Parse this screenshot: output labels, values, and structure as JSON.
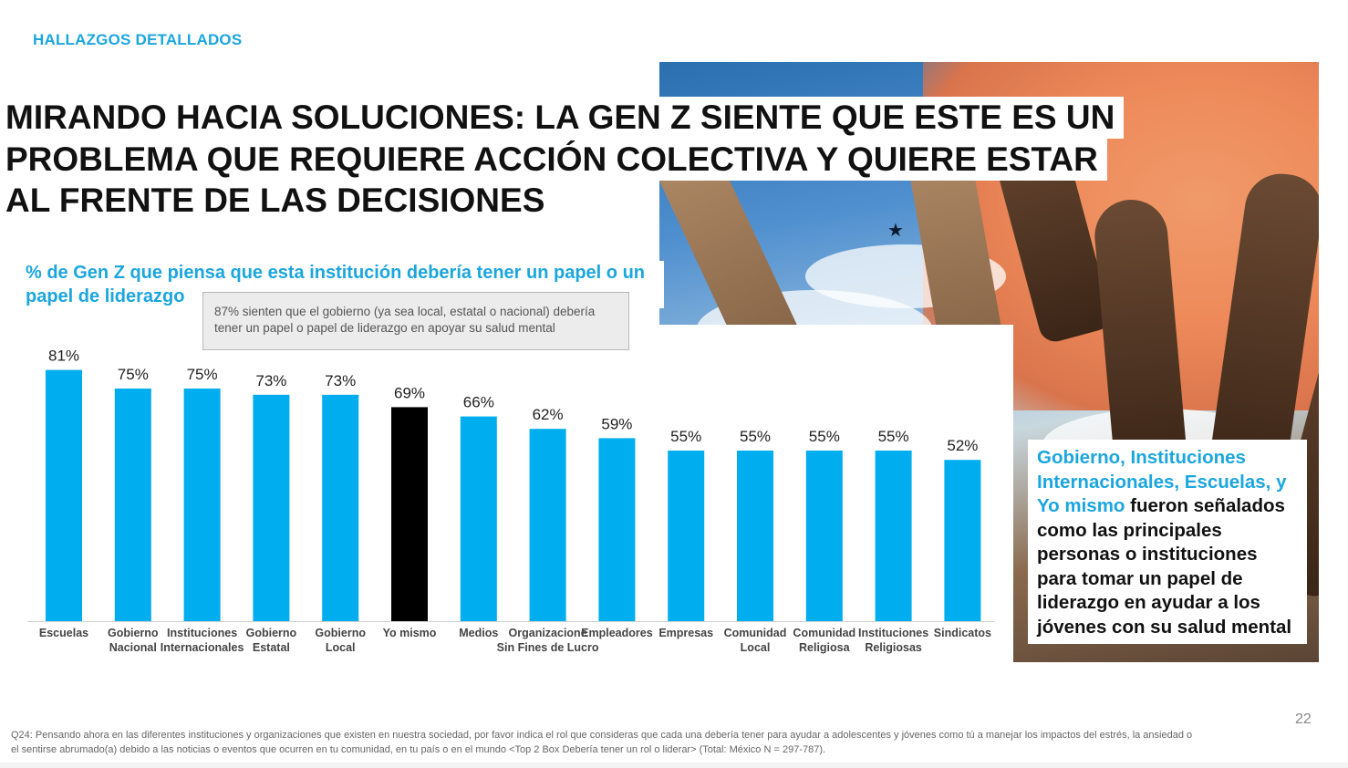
{
  "section_label": "HALLAZGOS DETALLADOS",
  "title_lines": [
    "MIRANDO HACIA SOLUCIONES: LA GEN Z SIENTE QUE ESTE ES UN",
    "PROBLEMA QUE REQUIERE ACCIÓN COLECTIVA Y QUIERE ESTAR",
    "AL FRENTE DE LAS DECISIONES"
  ],
  "subtitle": "% de Gen Z que piensa que esta institución debería tener un papel o un papel de liderazgo",
  "callout": "87% sienten que el gobierno (ya sea local, estatal o nacional) debería tener un papel o papel de liderazgo en apoyar su salud mental",
  "side_box": {
    "highlight": "Gobierno, Instituciones Internacionales, Escuelas, y Yo mismo",
    "rest": " fueron señalados como las principales personas o instituciones para tomar un papel de liderazgo en ayudar a los jóvenes con su salud mental"
  },
  "page_number": "22",
  "footnote": "Q24: Pensando ahora en las diferentes instituciones y organizaciones que existen en nuestra sociedad, por favor indica el rol que consideras que cada una debería tener para ayudar a adolescentes y jóvenes como tú a manejar los impactos del estrés, la ansiedad o el sentirse abrumado(a) debido a las noticias o eventos que ocurren en tu comunidad, en tu país o en el mundo <Top 2 Box Debería tener un rol o liderar> (Total: México N = 297-787).",
  "colors": {
    "accent": "#1ba6de",
    "bar": "#00adee",
    "highlight_bar": "#000000"
  },
  "chart_data": {
    "type": "bar",
    "categories": [
      [
        "Escuelas"
      ],
      [
        "Gobierno",
        "Nacional"
      ],
      [
        "Instituciones",
        "Internacionales"
      ],
      [
        "Gobierno",
        "Estatal"
      ],
      [
        "Gobierno",
        "Local"
      ],
      [
        "Yo mismo"
      ],
      [
        "Medios"
      ],
      [
        "Organizacione",
        "Sin Fines de Lucro"
      ],
      [
        "Empleadores"
      ],
      [
        "Empresas"
      ],
      [
        "Comunidad",
        "Local"
      ],
      [
        "Comunidad",
        "Religiosa"
      ],
      [
        "Instituciones",
        "Religiosas"
      ],
      [
        "Sindicatos"
      ]
    ],
    "values": [
      81,
      75,
      75,
      73,
      73,
      69,
      66,
      62,
      59,
      55,
      55,
      55,
      55,
      52
    ],
    "data_labels": [
      "81%",
      "75%",
      "75%",
      "73%",
      "73%",
      "69%",
      "66%",
      "62%",
      "59%",
      "55%",
      "55%",
      "55%",
      "55%",
      "52%"
    ],
    "highlight_index": 5,
    "ylim": [
      0,
      100
    ],
    "grid": false,
    "legend": "none"
  }
}
